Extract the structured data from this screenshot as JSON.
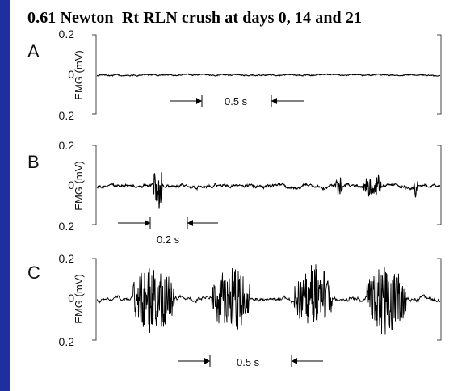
{
  "title": "0.61 Newton  Rt RLN crush at days 0, 14 and 21",
  "chart_data": [
    {
      "panel": "A",
      "type": "line",
      "ylabel": "EMG  (mV)",
      "y_tick_labels": [
        "0.2",
        "0",
        "0.2"
      ],
      "ylim": [
        -0.2,
        0.2
      ],
      "scale_bar_label": "0.5 s",
      "seed": 11,
      "baseline_noise": 0.004,
      "bursts": []
    },
    {
      "panel": "B",
      "type": "line",
      "ylabel": "EMG  (mV)",
      "y_tick_labels": [
        "0.2",
        "0",
        "0.2"
      ],
      "ylim": [
        -0.2,
        0.2
      ],
      "scale_bar_label": "0.2 s",
      "seed": 23,
      "baseline_noise": 0.01,
      "bursts": [
        {
          "start": 0.165,
          "end": 0.19,
          "amp": 0.13
        },
        {
          "start": 0.695,
          "end": 0.715,
          "amp": 0.05
        },
        {
          "start": 0.775,
          "end": 0.83,
          "amp": 0.06
        },
        {
          "start": 0.92,
          "end": 0.935,
          "amp": 0.05
        }
      ]
    },
    {
      "panel": "C",
      "type": "line",
      "ylabel": "EMG  (mV)",
      "y_tick_labels": [
        "0.2",
        "0",
        "0.2"
      ],
      "ylim": [
        -0.2,
        0.2
      ],
      "scale_bar_label": "0.5 s",
      "seed": 37,
      "baseline_noise": 0.012,
      "bursts": [
        {
          "start": 0.105,
          "end": 0.225,
          "amp": 0.17
        },
        {
          "start": 0.335,
          "end": 0.445,
          "amp": 0.16
        },
        {
          "start": 0.575,
          "end": 0.685,
          "amp": 0.17
        },
        {
          "start": 0.785,
          "end": 0.9,
          "amp": 0.17
        }
      ]
    }
  ]
}
